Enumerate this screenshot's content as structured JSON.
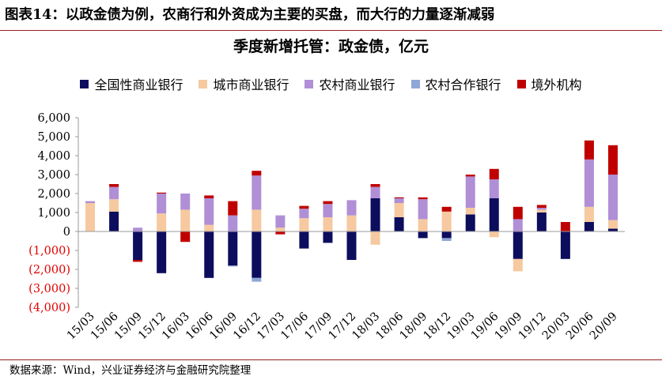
{
  "figure_title": "图表14：以政金债为例，农商行和外资成为主要的买盘，而大行的力量逐渐减弱",
  "source": "数据来源：Wind，兴业证券经济与金融研究院整理",
  "chart_data": {
    "type": "bar",
    "stacked": true,
    "title": "季度新增托管：政金债，亿元",
    "xlabel": "",
    "ylabel": "",
    "ylim": [
      -4000,
      6000
    ],
    "yticks": [
      {
        "value": 6000,
        "label": "6,000"
      },
      {
        "value": 5000,
        "label": "5,000"
      },
      {
        "value": 4000,
        "label": "4,000"
      },
      {
        "value": 3000,
        "label": "3,000"
      },
      {
        "value": 2000,
        "label": "2,000"
      },
      {
        "value": 1000,
        "label": "1,000"
      },
      {
        "value": 0,
        "label": "0"
      },
      {
        "value": -1000,
        "label": "(1,000)"
      },
      {
        "value": -2000,
        "label": "(2,000)"
      },
      {
        "value": -3000,
        "label": "(3,000)"
      },
      {
        "value": -4000,
        "label": "(4,000)"
      }
    ],
    "negative_label_color": "#e00000",
    "legend_position": "top",
    "categories": [
      "15/03",
      "15/06",
      "15/09",
      "15/12",
      "16/03",
      "16/06",
      "16/09",
      "16/12",
      "17/03",
      "17/06",
      "17/09",
      "17/12",
      "18/03",
      "18/06",
      "18/09",
      "18/12",
      "19/03",
      "19/06",
      "19/09",
      "19/12",
      "20/03",
      "20/06",
      "20/09"
    ],
    "series": [
      {
        "name": "全国性商业银行",
        "color": "#0d0d5e",
        "values": [
          0,
          1050,
          -1500,
          -2200,
          0,
          -2450,
          -1800,
          -2450,
          0,
          -900,
          -600,
          -1500,
          1750,
          750,
          -350,
          -350,
          900,
          1750,
          -1450,
          1000,
          -1450,
          500,
          150
        ]
      },
      {
        "name": "城市商业银行",
        "color": "#f6c9a0",
        "values": [
          1500,
          650,
          0,
          950,
          1150,
          350,
          0,
          1150,
          200,
          700,
          750,
          850,
          -700,
          750,
          650,
          1050,
          350,
          -300,
          -650,
          150,
          0,
          800,
          450
        ]
      },
      {
        "name": "农村商业银行",
        "color": "#b08fd6",
        "values": [
          100,
          650,
          200,
          1050,
          850,
          1400,
          850,
          1800,
          650,
          500,
          700,
          800,
          600,
          250,
          1050,
          0,
          1650,
          1000,
          650,
          100,
          0,
          2500,
          2400
        ]
      },
      {
        "name": "农村合作银行",
        "color": "#8fa7d6",
        "values": [
          0,
          0,
          0,
          0,
          0,
          0,
          -50,
          -200,
          0,
          0,
          0,
          0,
          0,
          0,
          0,
          -150,
          0,
          0,
          0,
          0,
          0,
          0,
          0
        ]
      },
      {
        "name": "境外机构",
        "color": "#c00000",
        "values": [
          0,
          150,
          -100,
          50,
          -550,
          150,
          750,
          250,
          -150,
          150,
          150,
          0,
          150,
          50,
          100,
          250,
          100,
          550,
          650,
          150,
          500,
          1000,
          1550
        ]
      }
    ]
  }
}
